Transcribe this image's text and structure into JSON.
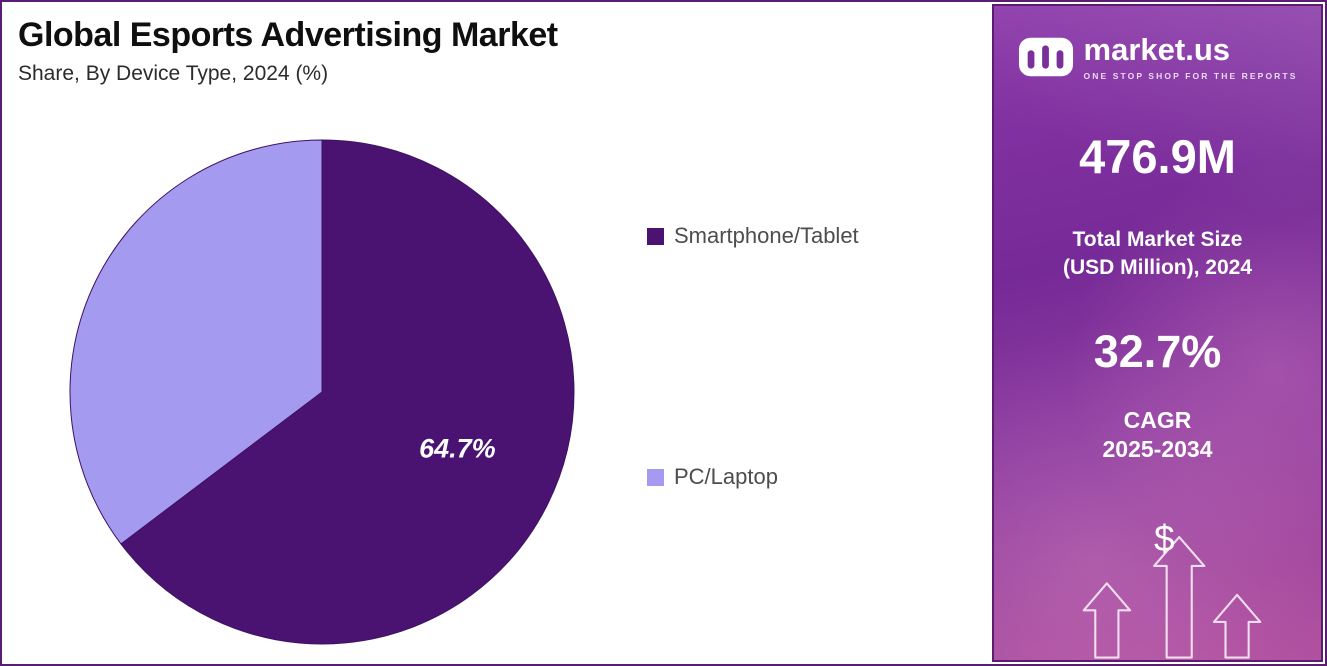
{
  "colors": {
    "page_border": "#5a1d72",
    "panel_border": "#5a1d72",
    "panel_top": "#8a36a8",
    "panel_mid": "#762a97",
    "panel_bottom": "#b2519f",
    "title_text": "#0f0f0f",
    "subtitle_text": "#2b2b2b",
    "legend_text": "#4d4d4d",
    "slice_dark": "#4a1372",
    "slice_light": "#a49bf0"
  },
  "header": {
    "title": "Global Esports Advertising Market",
    "subtitle": "Share, By Device Type, 2024 (%)"
  },
  "chart_data": {
    "type": "pie",
    "title": "Global Esports Advertising Market Share, By Device Type, 2024 (%)",
    "unit": "%",
    "start_angle": "top",
    "direction": "clockwise",
    "legend_position": "right",
    "slices": [
      {
        "label": "Smartphone/Tablet",
        "value": 64.7,
        "color": "#4a1372",
        "data_label": "64.7%"
      },
      {
        "label": "PC/Laptop",
        "value": 35.3,
        "color": "#a49bf0",
        "data_label": ""
      }
    ]
  },
  "sidebar": {
    "logo_text": "market.us",
    "tagline": "ONE STOP SHOP FOR THE REPORTS",
    "stat1_value": "476.9M",
    "stat1_label_line1": "Total Market Size",
    "stat1_label_line2": "(USD Million), 2024",
    "stat2_value": "32.7%",
    "stat2_label_line1": "CAGR",
    "stat2_label_line2": "2025-2034",
    "currency_symbol": "$"
  }
}
